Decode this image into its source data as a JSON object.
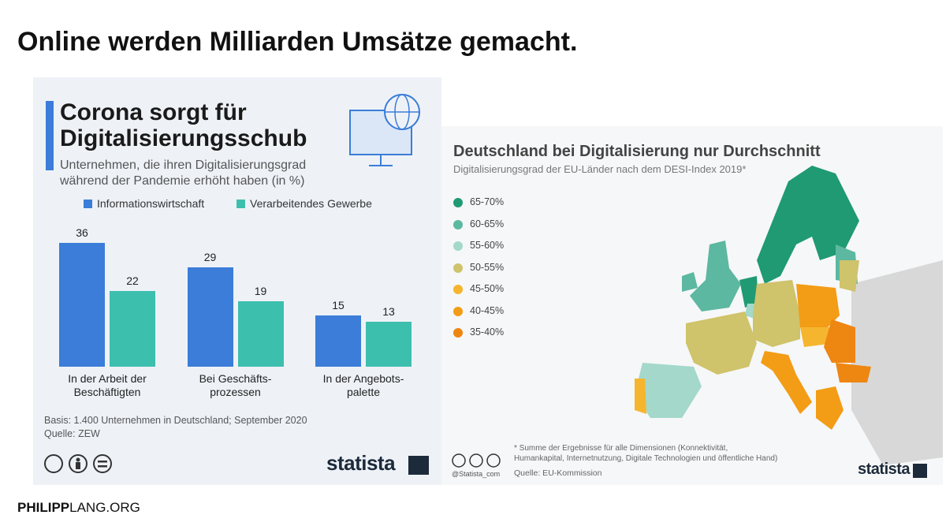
{
  "slide": {
    "title": "Online werden Milliarden Umsätze gemacht.",
    "footer_bold": "PHILIPP",
    "footer_regular": "LANG.ORG"
  },
  "chart_data": {
    "type": "bar",
    "title": "Corona sorgt für\nDigitalisierungsschub",
    "subtitle": "Unternehmen, die ihren Digitalisierungsgrad\nwährend der Pandemie erhöht haben (in %)",
    "categories": [
      "In der Arbeit der\nBeschäftigten",
      "Bei Geschäfts-\nprozessen",
      "In der Angebots-\npalette"
    ],
    "series": [
      {
        "name": "Informationswirtschaft",
        "color": "#3b7dd8",
        "values": [
          36,
          29,
          15
        ]
      },
      {
        "name": "Verarbeitendes Gewerbe",
        "color": "#3dbfae",
        "values": [
          22,
          19,
          13
        ]
      }
    ],
    "ylim": [
      0,
      36
    ],
    "note": "Basis: 1.400 Unternehmen in Deutschland; September 2020",
    "source": "Quelle: ZEW",
    "logo": "statista"
  },
  "map": {
    "title": "Deutschland bei Digitalisierung nur Durchschnitt",
    "subtitle": "Digitalisierungsgrad der EU-Länder nach dem DESI-Index 2019*",
    "legend": [
      {
        "label": "65-70%",
        "color": "#1f9a72"
      },
      {
        "label": "60-65%",
        "color": "#5cb8a0"
      },
      {
        "label": "55-60%",
        "color": "#a3d8cb"
      },
      {
        "label": "50-55%",
        "color": "#cfc36b"
      },
      {
        "label": "45-50%",
        "color": "#f6b52e"
      },
      {
        "label": "40-45%",
        "color": "#f39c16"
      },
      {
        "label": "35-40%",
        "color": "#ee8612"
      }
    ],
    "footnote": "* Summe der Ergebnisse für alle Dimensionen (Konnektivität,\n   Humankapital, Internetnutzung, Digitale Technologien und öffentliche Hand)",
    "handle": "@Statista_com",
    "source": "Quelle: EU-Kommission",
    "logo": "statista"
  }
}
